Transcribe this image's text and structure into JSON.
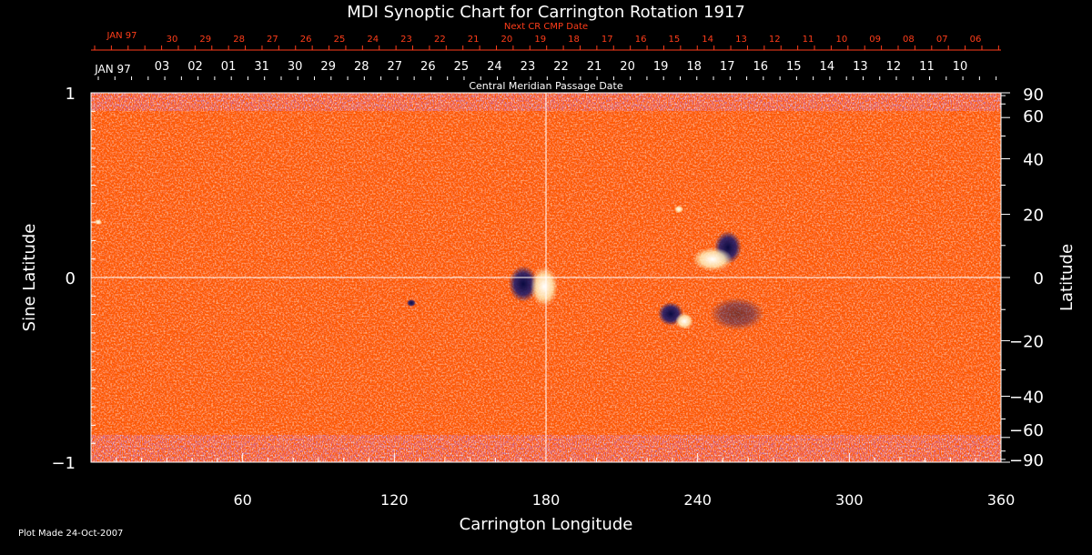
{
  "chart_data": {
    "type": "heatmap",
    "title": "MDI Synoptic Chart for Carrington Rotation 1917",
    "xlabel": "Carrington Longitude",
    "ylabel_left": "Sine Latitude",
    "ylabel_right": "Latitude",
    "xlim": [
      0,
      360
    ],
    "ylim": [
      -1,
      1
    ],
    "x_ticks": [
      60,
      120,
      180,
      240,
      300,
      360
    ],
    "y_ticks_left": [
      1,
      0,
      -1
    ],
    "y_ticks_left_labels": [
      "1",
      "0",
      "−1"
    ],
    "y_ticks_right": [
      90,
      60,
      40,
      20,
      0,
      -20,
      -40,
      -60,
      -90
    ],
    "y_ticks_right_labels": [
      "90",
      "60",
      "40",
      "20",
      "0",
      "−20",
      "−40",
      "−60",
      "−90"
    ],
    "grid": "crosshair at 180 longitude and equator",
    "top_axis_1": {
      "title": "Next CR CMP Date",
      "month_label": "JAN 97",
      "labels": [
        "30",
        "29",
        "28",
        "27",
        "26",
        "25",
        "24",
        "23",
        "22",
        "21",
        "20",
        "19",
        "18",
        "17",
        "16",
        "15",
        "14",
        "13",
        "12",
        "11",
        "10",
        "09",
        "08",
        "07",
        "06"
      ]
    },
    "top_axis_2": {
      "title": "Central Meridian Passage Date",
      "month_label": "JAN 97",
      "labels": [
        "03",
        "02",
        "01",
        "31",
        "30",
        "29",
        "28",
        "27",
        "26",
        "25",
        "24",
        "23",
        "22",
        "21",
        "20",
        "19",
        "18",
        "17",
        "16",
        "15",
        "14",
        "13",
        "12",
        "11",
        "10"
      ]
    },
    "colors": {
      "background": "#ff5a00",
      "positive": "#ffffff",
      "negative": "#1a1a6e",
      "accent_text": "#ff3d1a"
    }
  },
  "footer": {
    "plot_made": "Plot Made 24-Oct-2007"
  }
}
